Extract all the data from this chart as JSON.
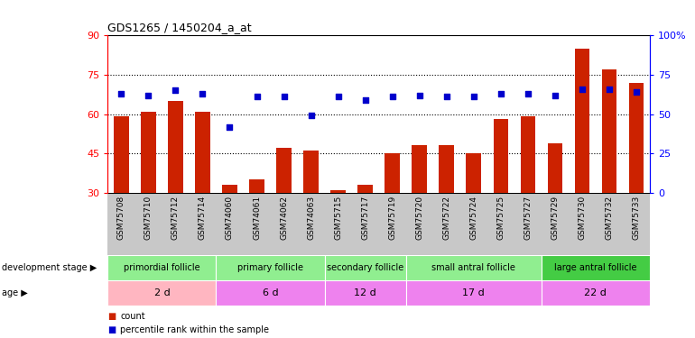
{
  "title": "GDS1265 / 1450204_a_at",
  "samples": [
    "GSM75708",
    "GSM75710",
    "GSM75712",
    "GSM75714",
    "GSM74060",
    "GSM74061",
    "GSM74062",
    "GSM74063",
    "GSM75715",
    "GSM75717",
    "GSM75719",
    "GSM75720",
    "GSM75722",
    "GSM75724",
    "GSM75725",
    "GSM75727",
    "GSM75729",
    "GSM75730",
    "GSM75732",
    "GSM75733"
  ],
  "counts": [
    59,
    61,
    65,
    61,
    33,
    35,
    47,
    46,
    31,
    33,
    45,
    48,
    48,
    45,
    58,
    59,
    49,
    85,
    77,
    72
  ],
  "percentiles": [
    63,
    62,
    65,
    63,
    42,
    61,
    61,
    49,
    61,
    59,
    61,
    62,
    61,
    61,
    63,
    63,
    62,
    66,
    66,
    64
  ],
  "groups": [
    {
      "label": "primordial follicle",
      "age": "2 d",
      "start": 0,
      "end": 4
    },
    {
      "label": "primary follicle",
      "age": "6 d",
      "start": 4,
      "end": 8
    },
    {
      "label": "secondary follicle",
      "age": "12 d",
      "start": 8,
      "end": 11
    },
    {
      "label": "small antral follicle",
      "age": "17 d",
      "start": 11,
      "end": 16
    },
    {
      "label": "large antral follicle",
      "age": "22 d",
      "start": 16,
      "end": 20
    }
  ],
  "group_colors": [
    "#90EE90",
    "#90EE90",
    "#90EE90",
    "#90EE90",
    "#44CC44"
  ],
  "age_colors": [
    "#FFB6C1",
    "#EE82EE",
    "#EE82EE",
    "#EE82EE",
    "#EE82EE"
  ],
  "ylim_left": [
    30,
    90
  ],
  "ylim_right": [
    0,
    100
  ],
  "yticks_left": [
    30,
    45,
    60,
    75,
    90
  ],
  "yticks_right": [
    0,
    25,
    50,
    75,
    100
  ],
  "bar_color": "#CC2200",
  "dot_color": "#0000CC",
  "bg_color": "#FFFFFF",
  "tick_area_color": "#C8C8C8",
  "bar_width": 0.55
}
